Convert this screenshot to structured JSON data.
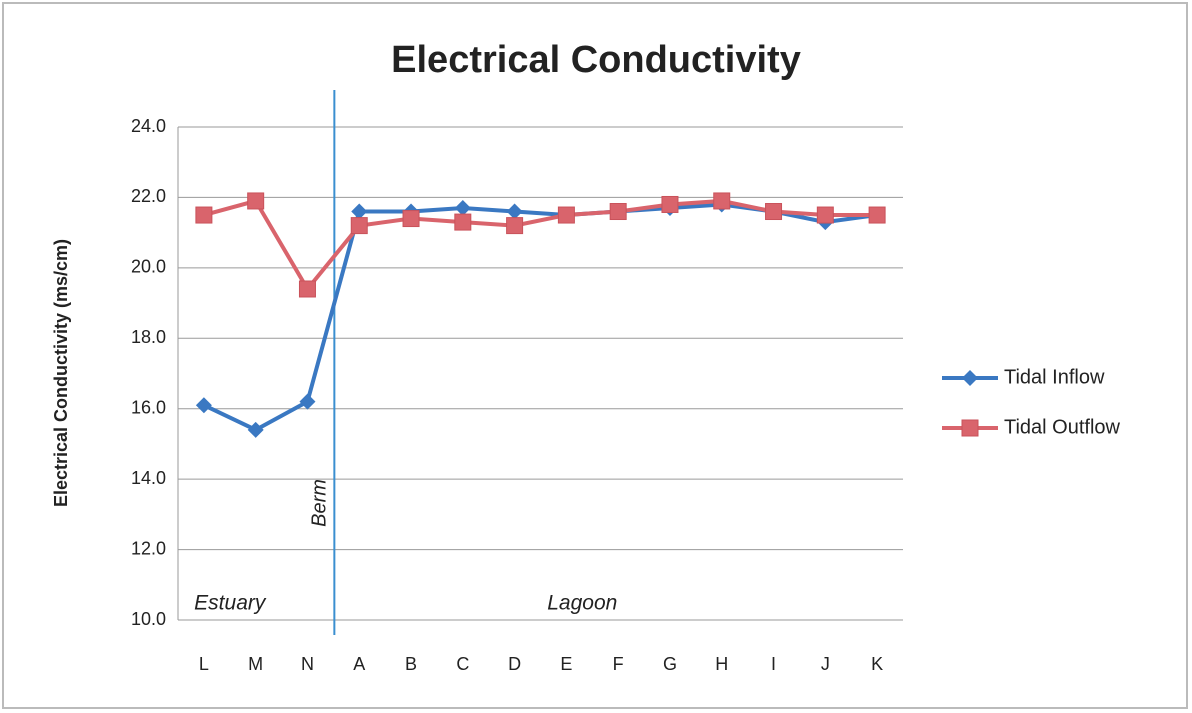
{
  "chart_data": {
    "type": "line",
    "title": "Electrical Conductivity",
    "y_label": "Electrical Conductivity (ms/cm)",
    "annotations": [
      "Berm",
      "Estuary",
      "Lagoon"
    ],
    "categories": [
      "L",
      "M",
      "N",
      "A",
      "B",
      "C",
      "D",
      "E",
      "F",
      "G",
      "H",
      "I",
      "J",
      "K"
    ],
    "series": [
      {
        "name": "Tidal Inflow",
        "color": "#3a78c2",
        "marker": "diamond",
        "values": [
          16.1,
          15.4,
          16.2,
          21.6,
          21.6,
          21.7,
          21.6,
          21.5,
          21.6,
          21.7,
          21.8,
          21.6,
          21.3,
          21.5
        ]
      },
      {
        "name": "Tidal Outflow",
        "color": "#d9646c",
        "marker": "square",
        "values": [
          21.5,
          21.9,
          19.4,
          21.2,
          21.4,
          21.3,
          21.2,
          21.5,
          21.6,
          21.8,
          21.9,
          21.6,
          21.5,
          21.5
        ]
      }
    ],
    "ylim": [
      10,
      24
    ],
    "yticks": [
      {
        "value": 10,
        "label": "10.0"
      },
      {
        "value": 12,
        "label": "12.0"
      },
      {
        "value": 14,
        "label": "14.0"
      },
      {
        "value": 16,
        "label": "16.0"
      },
      {
        "value": 18,
        "label": "18.0"
      },
      {
        "value": 20,
        "label": "20.0"
      },
      {
        "value": 22,
        "label": "22.0"
      },
      {
        "value": 24,
        "label": "24.0"
      }
    ],
    "grid": true,
    "legend": "right"
  }
}
